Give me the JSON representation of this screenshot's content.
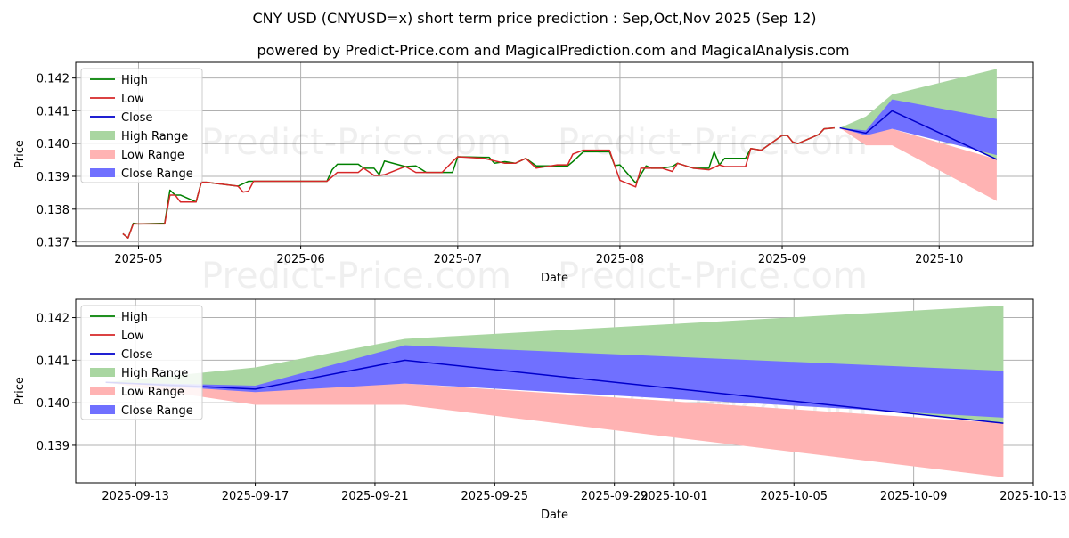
{
  "title": "CNY USD (CNYUSD=x) short term price prediction : Sep,Oct,Nov 2025 (Sep 12)",
  "subtitle": "powered by Predict-Price.com and MagicalPrediction.com and MagicalAnalysis.com",
  "watermark": "Predict-Price.com",
  "colors": {
    "high": "#008000",
    "low": "#d62728",
    "close": "#0000cc",
    "high_range": "#a9d6a1",
    "low_range": "#ffb3b3",
    "close_range": "#7070ff",
    "grid": "#b0b0b0"
  },
  "legend": {
    "high": "High",
    "low": "Low",
    "close": "Close",
    "high_range": "High Range",
    "low_range": "Low Range",
    "close_range": "Close Range"
  },
  "chart_data": [
    {
      "type": "line",
      "xlabel": "Date",
      "ylabel": "Price",
      "xlim": [
        "2025-04-19",
        "2025-10-19"
      ],
      "ylim": [
        0.13688,
        0.14248
      ],
      "xticks": [
        {
          "date": "2025-05-01",
          "label": "2025-05"
        },
        {
          "date": "2025-06-01",
          "label": "2025-06"
        },
        {
          "date": "2025-07-01",
          "label": "2025-07"
        },
        {
          "date": "2025-08-01",
          "label": "2025-08"
        },
        {
          "date": "2025-09-01",
          "label": "2025-09"
        },
        {
          "date": "2025-10-01",
          "label": "2025-10"
        }
      ],
      "yticks": [
        0.137,
        0.138,
        0.139,
        0.14,
        0.141,
        0.142
      ],
      "ytick_labels": [
        "0.137",
        "0.138",
        "0.139",
        "0.140",
        "0.141",
        "0.142"
      ],
      "grid": true,
      "legend_position": "top-left",
      "history": {
        "high": [
          [
            "2025-04-28",
            0.13725
          ],
          [
            "2025-04-29",
            0.13712
          ],
          [
            "2025-04-30",
            0.13757
          ],
          [
            "2025-05-01",
            0.13755
          ],
          [
            "2025-05-06",
            0.13757
          ],
          [
            "2025-05-07",
            0.13858
          ],
          [
            "2025-05-08",
            0.13843
          ],
          [
            "2025-05-09",
            0.13843
          ],
          [
            "2025-05-12",
            0.13822
          ],
          [
            "2025-05-13",
            0.13882
          ],
          [
            "2025-05-14",
            0.13882
          ],
          [
            "2025-05-20",
            0.1387
          ],
          [
            "2025-05-22",
            0.13885
          ],
          [
            "2025-05-23",
            0.13885
          ],
          [
            "2025-06-06",
            0.13885
          ],
          [
            "2025-06-07",
            0.1392
          ],
          [
            "2025-06-08",
            0.13937
          ],
          [
            "2025-06-12",
            0.13937
          ],
          [
            "2025-06-13",
            0.13925
          ],
          [
            "2025-06-15",
            0.13925
          ],
          [
            "2025-06-16",
            0.13905
          ],
          [
            "2025-06-17",
            0.13947
          ],
          [
            "2025-06-21",
            0.1393
          ],
          [
            "2025-06-23",
            0.13932
          ],
          [
            "2025-06-25",
            0.13912
          ],
          [
            "2025-06-30",
            0.13912
          ],
          [
            "2025-07-01",
            0.1396
          ],
          [
            "2025-07-06",
            0.13958
          ],
          [
            "2025-07-07",
            0.13958
          ],
          [
            "2025-07-08",
            0.1394
          ],
          [
            "2025-07-10",
            0.13945
          ],
          [
            "2025-07-12",
            0.1394
          ],
          [
            "2025-07-14",
            0.13955
          ],
          [
            "2025-07-16",
            0.13932
          ],
          [
            "2025-07-22",
            0.13932
          ],
          [
            "2025-07-23",
            0.13945
          ],
          [
            "2025-07-25",
            0.13975
          ],
          [
            "2025-07-30",
            0.13975
          ],
          [
            "2025-07-31",
            0.13933
          ],
          [
            "2025-08-01",
            0.13935
          ],
          [
            "2025-08-04",
            0.1388
          ],
          [
            "2025-08-06",
            0.13932
          ],
          [
            "2025-08-07",
            0.13925
          ],
          [
            "2025-08-09",
            0.13925
          ],
          [
            "2025-08-11",
            0.1393
          ],
          [
            "2025-08-12",
            0.1394
          ],
          [
            "2025-08-15",
            0.13925
          ],
          [
            "2025-08-18",
            0.13925
          ],
          [
            "2025-08-19",
            0.13975
          ],
          [
            "2025-08-20",
            0.13935
          ],
          [
            "2025-08-21",
            0.13955
          ],
          [
            "2025-08-25",
            0.13955
          ],
          [
            "2025-08-26",
            0.13985
          ],
          [
            "2025-08-28",
            0.1398
          ],
          [
            "2025-09-01",
            0.14025
          ],
          [
            "2025-09-02",
            0.14025
          ],
          [
            "2025-09-03",
            0.14005
          ],
          [
            "2025-09-04",
            0.14
          ],
          [
            "2025-09-08",
            0.14028
          ],
          [
            "2025-09-09",
            0.14045
          ],
          [
            "2025-09-11",
            0.14048
          ]
        ],
        "low": [
          [
            "2025-04-28",
            0.13725
          ],
          [
            "2025-04-29",
            0.13712
          ],
          [
            "2025-04-30",
            0.13755
          ],
          [
            "2025-05-01",
            0.13755
          ],
          [
            "2025-05-06",
            0.13755
          ],
          [
            "2025-05-07",
            0.13843
          ],
          [
            "2025-05-08",
            0.13843
          ],
          [
            "2025-05-09",
            0.13822
          ],
          [
            "2025-05-12",
            0.13822
          ],
          [
            "2025-05-13",
            0.13882
          ],
          [
            "2025-05-14",
            0.13882
          ],
          [
            "2025-05-20",
            0.1387
          ],
          [
            "2025-05-21",
            0.13852
          ],
          [
            "2025-05-22",
            0.13855
          ],
          [
            "2025-05-23",
            0.13885
          ],
          [
            "2025-06-06",
            0.13885
          ],
          [
            "2025-06-08",
            0.13912
          ],
          [
            "2025-06-12",
            0.13912
          ],
          [
            "2025-06-13",
            0.13925
          ],
          [
            "2025-06-15",
            0.13903
          ],
          [
            "2025-06-16",
            0.13903
          ],
          [
            "2025-06-17",
            0.13905
          ],
          [
            "2025-06-21",
            0.1393
          ],
          [
            "2025-06-23",
            0.13912
          ],
          [
            "2025-06-28",
            0.13912
          ],
          [
            "2025-06-30",
            0.13945
          ],
          [
            "2025-07-01",
            0.1396
          ],
          [
            "2025-07-06",
            0.13955
          ],
          [
            "2025-07-10",
            0.1394
          ],
          [
            "2025-07-12",
            0.1394
          ],
          [
            "2025-07-14",
            0.13955
          ],
          [
            "2025-07-16",
            0.13925
          ],
          [
            "2025-07-20",
            0.13935
          ],
          [
            "2025-07-22",
            0.13935
          ],
          [
            "2025-07-23",
            0.13968
          ],
          [
            "2025-07-25",
            0.1398
          ],
          [
            "2025-07-30",
            0.1398
          ],
          [
            "2025-07-31",
            0.13933
          ],
          [
            "2025-08-01",
            0.13888
          ],
          [
            "2025-08-04",
            0.13868
          ],
          [
            "2025-08-05",
            0.13925
          ],
          [
            "2025-08-07",
            0.13925
          ],
          [
            "2025-08-09",
            0.13925
          ],
          [
            "2025-08-11",
            0.13915
          ],
          [
            "2025-08-12",
            0.1394
          ],
          [
            "2025-08-15",
            0.13925
          ],
          [
            "2025-08-18",
            0.1392
          ],
          [
            "2025-08-20",
            0.13935
          ],
          [
            "2025-08-21",
            0.1393
          ],
          [
            "2025-08-25",
            0.1393
          ],
          [
            "2025-08-26",
            0.13985
          ],
          [
            "2025-08-28",
            0.1398
          ],
          [
            "2025-09-01",
            0.14025
          ],
          [
            "2025-09-02",
            0.14025
          ],
          [
            "2025-09-03",
            0.14005
          ],
          [
            "2025-09-04",
            0.14
          ],
          [
            "2025-09-08",
            0.14028
          ],
          [
            "2025-09-09",
            0.14045
          ],
          [
            "2025-09-11",
            0.14048
          ]
        ]
      },
      "forecast": {
        "dates": [
          "2025-09-12",
          "2025-09-17",
          "2025-09-22",
          "2025-10-12"
        ],
        "close": [
          0.14048,
          0.14032,
          0.141,
          0.13952
        ],
        "high_range": {
          "upper": [
            0.14048,
            0.14083,
            0.1415,
            0.14228
          ],
          "lower": [
            0.14048,
            0.14032,
            0.141,
            0.13952
          ]
        },
        "low_range": {
          "upper": [
            0.14048,
            0.14032,
            0.14045,
            0.13952
          ],
          "lower": [
            0.14048,
            0.13995,
            0.13995,
            0.13825
          ]
        },
        "close_range": {
          "upper": [
            0.14048,
            0.1404,
            0.14135,
            0.14075
          ],
          "lower": [
            0.14048,
            0.14025,
            0.14045,
            0.13965
          ]
        }
      }
    },
    {
      "type": "line",
      "xlabel": "Date",
      "ylabel": "Price",
      "xlim": [
        "2025-09-11",
        "2025-10-13"
      ],
      "ylim": [
        0.13812,
        0.14243
      ],
      "xticks": [
        {
          "date": "2025-09-13",
          "label": "2025-09-13"
        },
        {
          "date": "2025-09-17",
          "label": "2025-09-17"
        },
        {
          "date": "2025-09-21",
          "label": "2025-09-21"
        },
        {
          "date": "2025-09-25",
          "label": "2025-09-25"
        },
        {
          "date": "2025-09-29",
          "label": "2025-09-29"
        },
        {
          "date": "2025-10-01",
          "label": "2025-10-01"
        },
        {
          "date": "2025-10-05",
          "label": "2025-10-05"
        },
        {
          "date": "2025-10-09",
          "label": "2025-10-09"
        },
        {
          "date": "2025-10-13",
          "label": "2025-10-13"
        }
      ],
      "yticks": [
        0.139,
        0.14,
        0.141,
        0.142
      ],
      "ytick_labels": [
        "0.139",
        "0.140",
        "0.141",
        "0.142"
      ],
      "grid": true,
      "legend_position": "top-left",
      "forecast": {
        "dates": [
          "2025-09-12",
          "2025-09-17",
          "2025-09-22",
          "2025-10-12"
        ],
        "close": [
          0.14048,
          0.14032,
          0.141,
          0.13952
        ],
        "high_range": {
          "upper": [
            0.14048,
            0.14083,
            0.1415,
            0.14228
          ],
          "lower": [
            0.14048,
            0.14032,
            0.141,
            0.13952
          ]
        },
        "low_range": {
          "upper": [
            0.14048,
            0.14032,
            0.14045,
            0.13952
          ],
          "lower": [
            0.14048,
            0.13995,
            0.13995,
            0.13825
          ]
        },
        "close_range": {
          "upper": [
            0.14048,
            0.1404,
            0.14135,
            0.14075
          ],
          "lower": [
            0.14048,
            0.14025,
            0.14045,
            0.13965
          ]
        }
      }
    }
  ]
}
